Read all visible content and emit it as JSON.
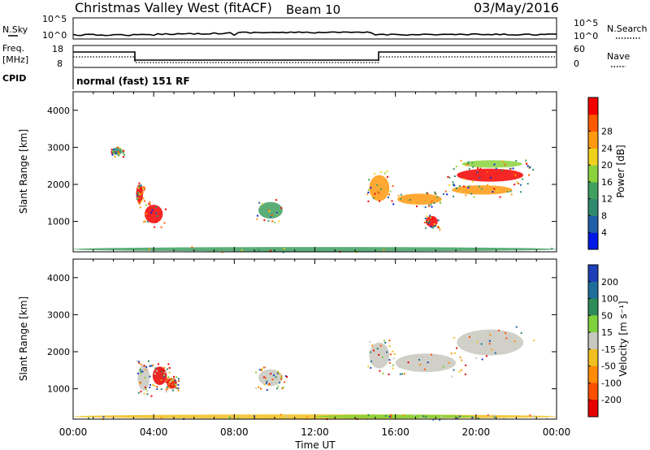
{
  "header": {
    "title": "Christmas Valley West (fitACF)",
    "beam": "Beam 10",
    "date": "03/May/2016"
  },
  "left_labels": {
    "nsky": "N.Sky",
    "freq_line1": "Freq.",
    "freq_line2": "[MHz]",
    "cpid": "CPID"
  },
  "right_labels": {
    "nsearch": "N.Search",
    "nave": "Nave"
  },
  "noise_panel": {
    "left_ticks": [
      "10^5",
      "10^0"
    ],
    "right_ticks": [
      "10^5",
      "10^0"
    ]
  },
  "freq_panel": {
    "left_ticks": [
      "18",
      "8"
    ],
    "right_ticks": [
      "60",
      "0"
    ]
  },
  "cpid_text": "normal (fast) 151 RF",
  "colors": {
    "power_scale": [
      "#0019e6",
      "#1f5fa8",
      "#2f8a6e",
      "#3fa060",
      "#8cd23c",
      "#f0d21e",
      "#ff9a10",
      "#ff5a00",
      "#f50000"
    ],
    "velocity_scale": [
      "#1f3fb8",
      "#1f6e9a",
      "#2e8c5a",
      "#7fd23c",
      "#c8c8c0",
      "#f0c020",
      "#ff8c00",
      "#ff5000",
      "#e60000"
    ],
    "scatter_gray": "#c8c8c2"
  },
  "chart_data": [
    {
      "type": "heatmap",
      "title": "Power",
      "xlabel": "",
      "ylabel": "Slant Range [km]",
      "x_ticks": [
        "00:00",
        "04:00",
        "08:00",
        "12:00",
        "16:00",
        "20:00",
        "00:00"
      ],
      "y_ticks": [
        1000,
        2000,
        3000,
        4000
      ],
      "xlim_hours": [
        0,
        24
      ],
      "ylim_km": [
        180,
        4500
      ],
      "colorbar": {
        "label": "Power [dB]",
        "ticks": [
          4,
          8,
          12,
          16,
          20,
          24,
          28
        ]
      },
      "regions": [
        {
          "t": 3.3,
          "r": 1750,
          "w": 0.35,
          "h": 500,
          "level": 8
        },
        {
          "t": 4.0,
          "r": 1200,
          "w": 0.9,
          "h": 500,
          "level": 8
        },
        {
          "t": 2.2,
          "r": 2900,
          "w": 0.5,
          "h": 200,
          "level": 2
        },
        {
          "t": 9.8,
          "r": 1300,
          "w": 1.2,
          "h": 450,
          "level": 3
        },
        {
          "t": 15.2,
          "r": 1900,
          "w": 1.0,
          "h": 700,
          "level": 6
        },
        {
          "t": 17.2,
          "r": 1600,
          "w": 2.2,
          "h": 300,
          "level": 6
        },
        {
          "t": 17.8,
          "r": 1000,
          "w": 0.6,
          "h": 300,
          "level": 8
        },
        {
          "t": 20.7,
          "r": 2250,
          "w": 3.3,
          "h": 350,
          "level": 8
        },
        {
          "t": 20.3,
          "r": 1850,
          "w": 3.0,
          "h": 250,
          "level": 6
        },
        {
          "t": 20.8,
          "r": 2550,
          "w": 3.0,
          "h": 200,
          "level": 4
        },
        {
          "t": 12.0,
          "r": 250,
          "w": 24.0,
          "h": 120,
          "level": 3
        }
      ]
    },
    {
      "type": "heatmap",
      "title": "Velocity",
      "xlabel": "Time UT",
      "ylabel": "Slant Range [km]",
      "x_ticks": [
        "00:00",
        "04:00",
        "08:00",
        "12:00",
        "16:00",
        "20:00",
        "00:00"
      ],
      "y_ticks": [
        1000,
        2000,
        3000,
        4000
      ],
      "xlim_hours": [
        0,
        24
      ],
      "ylim_km": [
        180,
        4500
      ],
      "colorbar": {
        "label": "Velocity [m s⁻¹]",
        "ticks": [
          200,
          100,
          50,
          15,
          -15,
          -50,
          -100,
          -200
        ]
      },
      "regions": [
        {
          "t": 4.3,
          "r": 1350,
          "w": 0.7,
          "h": 500,
          "level": 8
        },
        {
          "t": 3.5,
          "r": 1300,
          "w": 0.6,
          "h": 700,
          "level": 4
        },
        {
          "t": 4.9,
          "r": 1150,
          "w": 0.5,
          "h": 300,
          "level": 8
        },
        {
          "t": 9.8,
          "r": 1300,
          "w": 1.2,
          "h": 450,
          "level": 4
        },
        {
          "t": 15.2,
          "r": 1900,
          "w": 1.0,
          "h": 700,
          "level": 4
        },
        {
          "t": 17.5,
          "r": 1700,
          "w": 3.0,
          "h": 500,
          "level": 4
        },
        {
          "t": 20.7,
          "r": 2250,
          "w": 3.3,
          "h": 700,
          "level": 4
        },
        {
          "t": 12.0,
          "r": 250,
          "w": 24.0,
          "h": 120,
          "level": 5
        },
        {
          "t": 16.0,
          "r": 250,
          "w": 8.0,
          "h": 100,
          "level": 3
        }
      ]
    }
  ]
}
